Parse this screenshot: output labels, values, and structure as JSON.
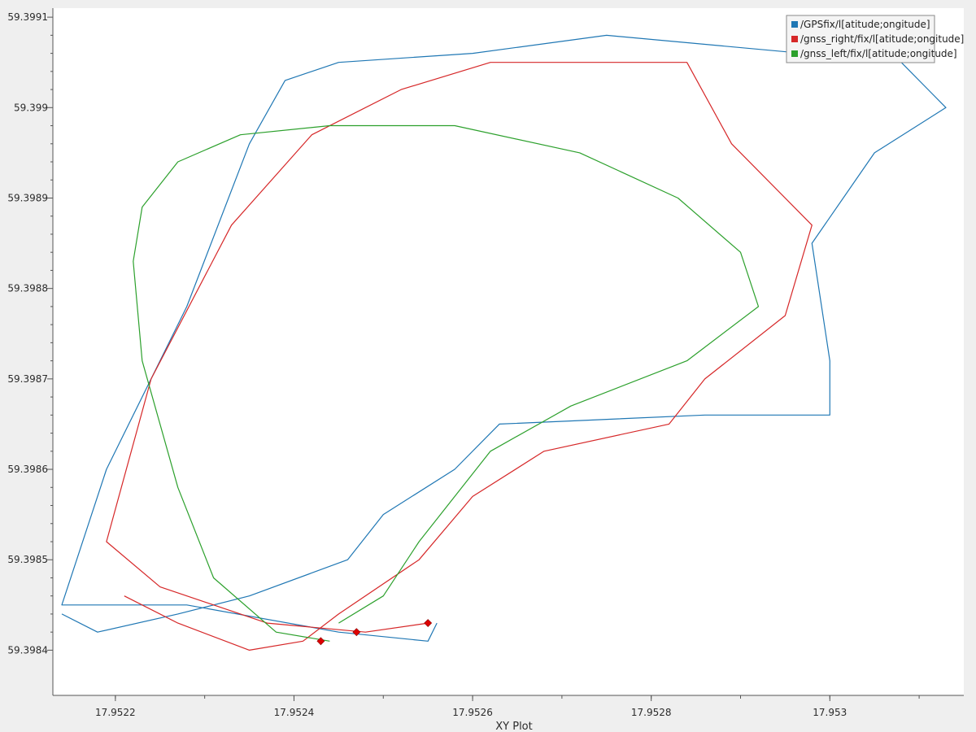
{
  "chart_data": {
    "type": "line",
    "title": "",
    "xlabel": "XY Plot",
    "ylabel": "",
    "xlim": [
      17.95213,
      17.95315
    ],
    "ylim": [
      59.39835,
      59.39911
    ],
    "x_ticks": [
      {
        "value": 17.9522,
        "label": "17.9522"
      },
      {
        "value": 17.9524,
        "label": "17.9524"
      },
      {
        "value": 17.9526,
        "label": "17.9526"
      },
      {
        "value": 17.9528,
        "label": "17.9528"
      },
      {
        "value": 17.953,
        "label": "17.953"
      }
    ],
    "y_ticks": [
      {
        "value": 59.3984,
        "label": "59.3984"
      },
      {
        "value": 59.3985,
        "label": "59.3985"
      },
      {
        "value": 59.3986,
        "label": "59.3986"
      },
      {
        "value": 59.3987,
        "label": "59.3987"
      },
      {
        "value": 59.3988,
        "label": "59.3988"
      },
      {
        "value": 59.3989,
        "label": "59.3989"
      },
      {
        "value": 59.399,
        "label": "59.399"
      },
      {
        "value": 59.3991,
        "label": "59.3991"
      }
    ],
    "grid": false,
    "legend_position": "top-right",
    "series": [
      {
        "name": "/GPSfix/l[atitude;ongitude]",
        "color": "#1f77b4",
        "x": [
          17.95256,
          17.95255,
          17.95245,
          17.95228,
          17.95214,
          17.95219,
          17.95228,
          17.95235,
          17.95239,
          17.95245,
          17.9526,
          17.95275,
          17.95308,
          17.95313,
          17.95305,
          17.95298,
          17.953,
          17.953,
          17.95286,
          17.95263,
          17.95258,
          17.9525,
          17.95246,
          17.95235,
          17.95227,
          17.95218,
          17.95214
        ],
        "y": [
          59.39843,
          59.39841,
          59.39842,
          59.39845,
          59.39845,
          59.3986,
          59.39878,
          59.39896,
          59.39903,
          59.39905,
          59.39906,
          59.39908,
          59.39905,
          59.399,
          59.39895,
          59.39885,
          59.39872,
          59.39866,
          59.39866,
          59.39865,
          59.3986,
          59.39855,
          59.3985,
          59.39846,
          59.39844,
          59.39842,
          59.39844
        ]
      },
      {
        "name": "/gnss_right/fix/l[atitude;ongitude]",
        "color": "#d62728",
        "x": [
          17.95255,
          17.95248,
          17.95237,
          17.95225,
          17.95219,
          17.95224,
          17.95233,
          17.95242,
          17.95252,
          17.95262,
          17.95284,
          17.95289,
          17.95298,
          17.95295,
          17.95286,
          17.95282,
          17.95268,
          17.9526,
          17.95254,
          17.95245,
          17.95241,
          17.95235,
          17.95227,
          17.95221
        ],
        "y": [
          59.39843,
          59.39842,
          59.39843,
          59.39847,
          59.39852,
          59.3987,
          59.39887,
          59.39897,
          59.39902,
          59.39905,
          59.39905,
          59.39896,
          59.39887,
          59.39877,
          59.3987,
          59.39865,
          59.39862,
          59.39857,
          59.3985,
          59.39844,
          59.39841,
          59.3984,
          59.39843,
          59.39846
        ]
      },
      {
        "name": "/gnss_left/fix/l[atitude;ongitude]",
        "color": "#2ca02c",
        "x": [
          17.95244,
          17.95238,
          17.95231,
          17.95227,
          17.95223,
          17.95222,
          17.95223,
          17.95227,
          17.95234,
          17.95244,
          17.95258,
          17.95272,
          17.95283,
          17.9529,
          17.95292,
          17.95284,
          17.95271,
          17.95262,
          17.95258,
          17.95254,
          17.9525,
          17.95245
        ],
        "y": [
          59.39841,
          59.39842,
          59.39848,
          59.39858,
          59.39872,
          59.39883,
          59.39889,
          59.39894,
          59.39897,
          59.39898,
          59.39898,
          59.39895,
          59.3989,
          59.39884,
          59.39878,
          59.39872,
          59.39867,
          59.39862,
          59.39857,
          59.39852,
          59.39846,
          59.39843
        ]
      }
    ],
    "markers": [
      {
        "x": 17.95243,
        "y": 59.39841,
        "color": "#dd0000"
      },
      {
        "x": 17.95247,
        "y": 59.39842,
        "color": "#dd0000"
      },
      {
        "x": 17.95255,
        "y": 59.39843,
        "color": "#dd0000"
      }
    ]
  }
}
